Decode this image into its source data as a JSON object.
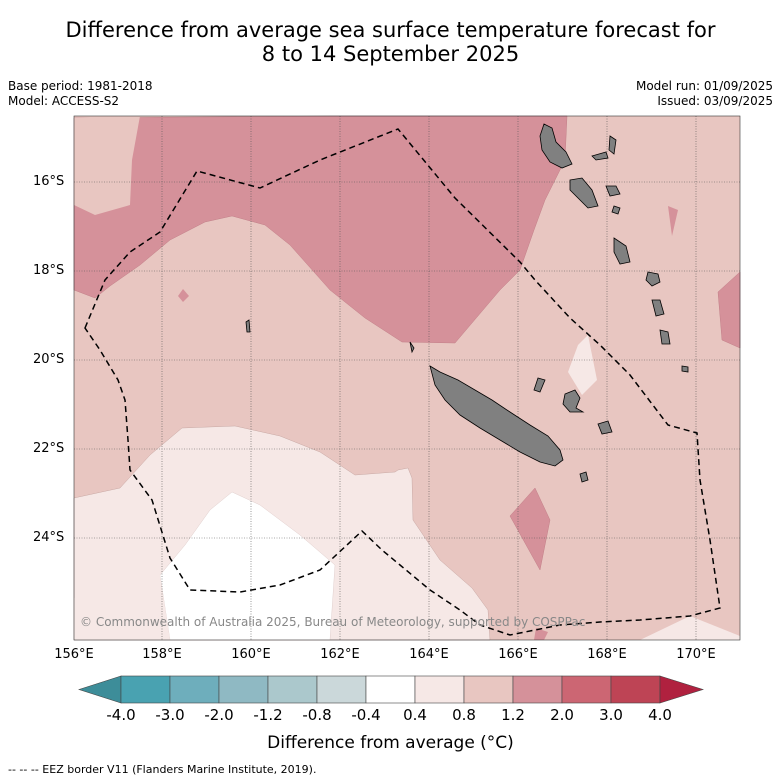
{
  "title_line1": "Difference from average sea surface temperature forecast for",
  "title_line2": "8 to 14 September 2025",
  "base_period": "Base period: 1981-2018",
  "model": "Model: ACCESS-S2",
  "model_run": "Model run: 01/09/2025",
  "issued": "Issued: 03/09/2025",
  "lat_labels": [
    "16°S",
    "18°S",
    "20°S",
    "22°S",
    "24°S"
  ],
  "lon_labels": [
    "156°E",
    "158°E",
    "160°E",
    "162°E",
    "164°E",
    "166°E",
    "168°E",
    "170°E"
  ],
  "copyright": "© Commonwealth of Australia 2025, Bureau of Meteorology, supported by COSPPac",
  "colorbar": {
    "ticks": [
      "-4.0",
      "-3.0",
      "-2.0",
      "-1.2",
      "-0.8",
      "-0.4",
      "0.4",
      "0.8",
      "1.2",
      "2.0",
      "3.0",
      "4.0"
    ],
    "colors": [
      "#3d8d99",
      "#49a2b1",
      "#6eaebc",
      "#8fb9c3",
      "#abc8cc",
      "#cbd8da",
      "#ffffff",
      "#f6e8e6",
      "#e8c6c1",
      "#d5919a",
      "#cc6673",
      "#be4455",
      "#b0213f"
    ],
    "title": "Difference from average (°C)"
  },
  "legend_footer": "--  --  -- EEZ border V11 (Flanders Marine Institute, 2019).",
  "map_colors": {
    "anom_0_4_0_8": "#f6e8e6",
    "anom_0_8_1_2": "#e8c6c1",
    "anom_1_2_2_0": "#d5919a",
    "anom_below_0_4": "#ffffff",
    "land": "#808080"
  }
}
